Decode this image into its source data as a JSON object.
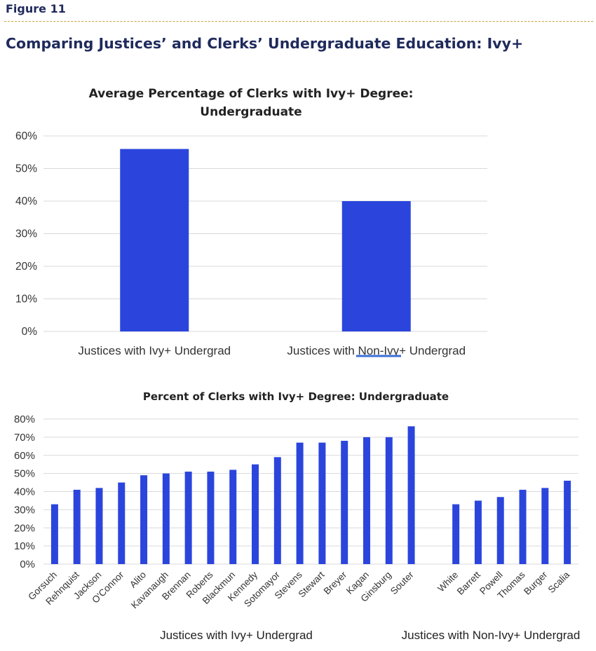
{
  "figure_label": "Figure 11",
  "heading": "Comparing Justices’ and Clerks’ Undergraduate Education: Ivy+",
  "colors": {
    "bar": "#2b45dc",
    "heading": "#1f2a5c",
    "grid": "#d9d9d9",
    "rule": "#c9a33d"
  },
  "chart_data": [
    {
      "type": "bar",
      "title_lines": [
        "Average Percentage of Clerks with Ivy+ Degree:",
        "Undergraduate"
      ],
      "categories": [
        "Justices with Ivy+ Undergrad",
        "Justices with Non-Ivy+ Undergrad"
      ],
      "values": [
        56,
        40
      ],
      "y_ticks": [
        "0%",
        "10%",
        "20%",
        "30%",
        "40%",
        "50%",
        "60%"
      ],
      "ylim": [
        0,
        60
      ],
      "grid": true,
      "legend": "none"
    },
    {
      "type": "bar",
      "title": "Percent of Clerks with Ivy+ Degree: Undergraduate",
      "y_ticks": [
        "0%",
        "10%",
        "20%",
        "30%",
        "40%",
        "50%",
        "60%",
        "70%",
        "80%"
      ],
      "ylim": [
        0,
        80
      ],
      "grid": true,
      "legend": "none",
      "groups": [
        {
          "label": "Justices with Ivy+ Undergrad",
          "categories": [
            "Gorsuch",
            "Rehnquist",
            "Jackson",
            "O'Connor",
            "Alito",
            "Kavanaugh",
            "Brennan",
            "Roberts",
            "Blackmun",
            "Kennedy",
            "Sotomayor",
            "Stevens",
            "Stewart",
            "Breyer",
            "Kagan",
            "Ginsburg",
            "Souter"
          ],
          "values": [
            33,
            41,
            42,
            45,
            49,
            50,
            51,
            51,
            52,
            55,
            59,
            67,
            67,
            68,
            70,
            70,
            76
          ]
        },
        {
          "label": "Justices with Non-Ivy+ Undergrad",
          "categories": [
            "White",
            "Barrett",
            "Powell",
            "Thomas",
            "Burger",
            "Scalia"
          ],
          "values": [
            33,
            35,
            37,
            41,
            42,
            46
          ]
        }
      ]
    }
  ]
}
